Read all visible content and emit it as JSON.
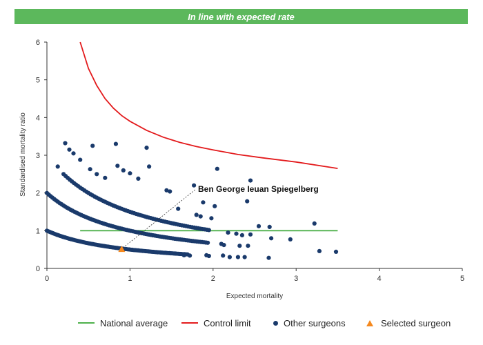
{
  "banner": {
    "text": "In line with expected rate",
    "color": "#5cb85c"
  },
  "chart_data": {
    "type": "scatter",
    "xlabel": "Expected mortality",
    "ylabel": "Standardised mortality ratio",
    "xlim": [
      0,
      5
    ],
    "ylim": [
      0,
      6
    ],
    "x_ticks": [
      "0",
      "1",
      "2",
      "3",
      "4",
      "5"
    ],
    "y_ticks": [
      "0",
      "1",
      "2",
      "3",
      "4",
      "5",
      "6"
    ],
    "grid": false,
    "legend_position": "bottom",
    "colors": {
      "national_average": "#4db04a",
      "control_limit": "#e31a1c",
      "other_surgeons": "#1a3a6b",
      "selected_surgeon": "#f5891f"
    },
    "national_average": {
      "name": "National average",
      "x_range": [
        0.4,
        3.5
      ],
      "y": 1.0
    },
    "control_limit": {
      "name": "Control limit",
      "x": [
        0.4,
        0.5,
        0.6,
        0.7,
        0.8,
        0.9,
        1.0,
        1.2,
        1.4,
        1.6,
        1.8,
        2.0,
        2.3,
        2.6,
        3.0,
        3.5
      ],
      "y": [
        6.0,
        5.3,
        4.85,
        4.5,
        4.25,
        4.05,
        3.9,
        3.66,
        3.48,
        3.34,
        3.23,
        3.14,
        3.02,
        2.93,
        2.82,
        2.65
      ]
    },
    "other_surgeons": {
      "name": "Other surgeons",
      "bands": [
        {
          "deaths": 1,
          "x_start": 0.0,
          "x_end": 1.7,
          "step": 0.018
        },
        {
          "deaths": 2,
          "x_start": 0.0,
          "x_end": 1.95,
          "step": 0.022
        },
        {
          "deaths": 3,
          "x_start": 0.2,
          "x_end": 1.95,
          "step": 0.025
        }
      ],
      "scattered": [
        [
          0.13,
          2.7
        ],
        [
          0.22,
          3.32
        ],
        [
          0.27,
          3.15
        ],
        [
          0.32,
          3.05
        ],
        [
          0.4,
          2.88
        ],
        [
          0.55,
          3.25
        ],
        [
          0.52,
          2.63
        ],
        [
          0.6,
          2.5
        ],
        [
          0.7,
          2.4
        ],
        [
          0.83,
          3.3
        ],
        [
          0.85,
          2.72
        ],
        [
          0.92,
          2.6
        ],
        [
          1.0,
          2.52
        ],
        [
          1.1,
          2.38
        ],
        [
          1.2,
          3.2
        ],
        [
          1.23,
          2.7
        ],
        [
          1.44,
          2.07
        ],
        [
          1.48,
          2.04
        ],
        [
          1.58,
          1.58
        ],
        [
          1.77,
          2.2
        ],
        [
          1.8,
          1.42
        ],
        [
          1.88,
          1.75
        ],
        [
          1.85,
          1.38
        ],
        [
          1.98,
          1.33
        ],
        [
          2.02,
          1.65
        ],
        [
          2.05,
          2.64
        ],
        [
          2.1,
          0.65
        ],
        [
          2.13,
          0.62
        ],
        [
          2.18,
          0.95
        ],
        [
          2.2,
          0.3
        ],
        [
          2.28,
          0.92
        ],
        [
          2.3,
          0.3
        ],
        [
          2.32,
          0.6
        ],
        [
          2.35,
          0.88
        ],
        [
          2.38,
          0.3
        ],
        [
          2.41,
          1.78
        ],
        [
          2.42,
          0.6
        ],
        [
          2.45,
          2.33
        ],
        [
          2.45,
          0.9
        ],
        [
          2.55,
          1.12
        ],
        [
          2.67,
          0.28
        ],
        [
          2.68,
          1.1
        ],
        [
          2.7,
          0.8
        ],
        [
          2.93,
          0.77
        ],
        [
          3.22,
          1.19
        ],
        [
          3.28,
          0.46
        ],
        [
          3.48,
          0.44
        ],
        [
          1.65,
          0.35
        ],
        [
          1.72,
          0.34
        ],
        [
          1.92,
          0.35
        ],
        [
          1.95,
          0.33
        ],
        [
          2.12,
          0.34
        ]
      ]
    },
    "selected_surgeon": {
      "name": "Selected surgeon",
      "x": 0.9,
      "y": 0.51,
      "label": "Ben George Ieuan Spiegelberg"
    }
  },
  "legend": [
    {
      "key": "national_average",
      "label": "National average"
    },
    {
      "key": "control_limit",
      "label": "Control limit"
    },
    {
      "key": "other_surgeons",
      "label": "Other surgeons"
    },
    {
      "key": "selected_surgeon",
      "label": "Selected surgeon"
    }
  ]
}
